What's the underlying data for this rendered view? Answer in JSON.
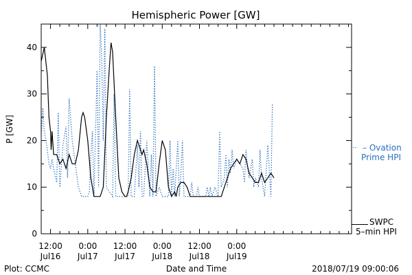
{
  "chart_data": {
    "type": "line",
    "title": "Hemispheric Power [GW]",
    "ylabel": "P [GW]",
    "xlabel": "Date and Time",
    "ylim": [
      0,
      45
    ],
    "xlim_hours": [
      -15,
      85
    ],
    "y_ticks": [
      0,
      10,
      20,
      30,
      40
    ],
    "x_ticks": [
      {
        "x": -12,
        "time": "12:00",
        "date": "Jul16"
      },
      {
        "x": 0,
        "time": "0:00",
        "date": "Jul17"
      },
      {
        "x": 12,
        "time": "12:00",
        "date": "Jul17"
      },
      {
        "x": 24,
        "time": "0:00",
        "date": "Jul18"
      },
      {
        "x": 36,
        "time": "12:00",
        "date": "Jul18"
      },
      {
        "x": 48,
        "time": "0:00",
        "date": "Jul19"
      }
    ],
    "grid": false,
    "series": [
      {
        "name": "SWPC 5-min HPI",
        "color": "#000000",
        "style": "solid",
        "points": [
          [
            -15,
            37
          ],
          [
            -14,
            40
          ],
          [
            -13,
            34
          ],
          [
            -12.5,
            25
          ],
          [
            -12,
            22
          ],
          [
            -11.8,
            18
          ],
          [
            -11.5,
            22
          ],
          [
            -11.2,
            19
          ],
          [
            -11,
            17
          ],
          [
            -10,
            17
          ],
          [
            -9,
            15
          ],
          [
            -8,
            16
          ],
          [
            -7,
            14
          ],
          [
            -6,
            17
          ],
          [
            -5,
            15
          ],
          [
            -4,
            15
          ],
          [
            -3,
            18
          ],
          [
            -2,
            25
          ],
          [
            -1.5,
            26
          ],
          [
            -1,
            25
          ],
          [
            0,
            20
          ],
          [
            1,
            12
          ],
          [
            2,
            8
          ],
          [
            3,
            8
          ],
          [
            4,
            8
          ],
          [
            5,
            10
          ],
          [
            6,
            25
          ],
          [
            7,
            36
          ],
          [
            7.5,
            41
          ],
          [
            8,
            39
          ],
          [
            9,
            25
          ],
          [
            10,
            12
          ],
          [
            11,
            9
          ],
          [
            12,
            8
          ],
          [
            12.5,
            8
          ],
          [
            13,
            9
          ],
          [
            14,
            12
          ],
          [
            15,
            17
          ],
          [
            16,
            20
          ],
          [
            17,
            18
          ],
          [
            17.5,
            17
          ],
          [
            18,
            18
          ],
          [
            19,
            15
          ],
          [
            20,
            10
          ],
          [
            21,
            9
          ],
          [
            22,
            9
          ],
          [
            23,
            15
          ],
          [
            24,
            20
          ],
          [
            25,
            18
          ],
          [
            26,
            10
          ],
          [
            27,
            8
          ],
          [
            28,
            9
          ],
          [
            28.5,
            8
          ],
          [
            29,
            10
          ],
          [
            30,
            11
          ],
          [
            31,
            11
          ],
          [
            32,
            10
          ],
          [
            33,
            8
          ],
          [
            35,
            8
          ],
          [
            37,
            8
          ],
          [
            39,
            8
          ],
          [
            41,
            8
          ],
          [
            43,
            8
          ],
          [
            44,
            10
          ],
          [
            45,
            12
          ],
          [
            46,
            14
          ],
          [
            47,
            15
          ],
          [
            48,
            16
          ],
          [
            49,
            15
          ],
          [
            50,
            17
          ],
          [
            51,
            16
          ],
          [
            52,
            13
          ],
          [
            53,
            12
          ],
          [
            54,
            11
          ],
          [
            55,
            11
          ],
          [
            56,
            13
          ],
          [
            57,
            11
          ],
          [
            58,
            12
          ],
          [
            59,
            13
          ],
          [
            60,
            12
          ]
        ]
      },
      {
        "name": "Ovation Prime HPI",
        "color": "#2a6ebd",
        "style": "dotted",
        "points": [
          [
            -15,
            20
          ],
          [
            -14.5,
            27
          ],
          [
            -14,
            22
          ],
          [
            -13,
            18
          ],
          [
            -12.5,
            15
          ],
          [
            -12,
            14
          ],
          [
            -11.5,
            16
          ],
          [
            -11,
            14
          ],
          [
            -10,
            11
          ],
          [
            -9.5,
            26
          ],
          [
            -9,
            10
          ],
          [
            -8,
            19
          ],
          [
            -7,
            23
          ],
          [
            -6.5,
            12
          ],
          [
            -6,
            29
          ],
          [
            -5,
            20
          ],
          [
            -4,
            15
          ],
          [
            -3,
            10
          ],
          [
            -2,
            8
          ],
          [
            -1,
            8
          ],
          [
            0,
            8
          ],
          [
            0.5,
            9
          ],
          [
            1,
            17
          ],
          [
            1.5,
            22
          ],
          [
            2,
            8
          ],
          [
            3,
            35
          ],
          [
            3.5,
            10
          ],
          [
            4,
            45
          ],
          [
            4.5,
            38
          ],
          [
            5,
            20
          ],
          [
            5.5,
            44
          ],
          [
            6,
            10
          ],
          [
            7,
            9
          ],
          [
            8,
            8
          ],
          [
            8.5,
            30
          ],
          [
            9,
            8
          ],
          [
            10,
            8
          ],
          [
            11,
            8
          ],
          [
            12,
            8
          ],
          [
            13,
            8
          ],
          [
            13.5,
            31
          ],
          [
            14,
            8
          ],
          [
            15,
            8
          ],
          [
            16,
            19
          ],
          [
            16.5,
            10
          ],
          [
            17,
            22
          ],
          [
            17.5,
            8
          ],
          [
            18,
            8
          ],
          [
            19,
            20
          ],
          [
            20,
            8
          ],
          [
            20.5,
            17
          ],
          [
            21,
            8
          ],
          [
            21.5,
            36
          ],
          [
            22,
            8
          ],
          [
            23,
            10
          ],
          [
            24,
            8
          ],
          [
            25,
            8
          ],
          [
            26,
            8
          ],
          [
            26.5,
            20
          ],
          [
            27,
            8
          ],
          [
            27.5,
            14
          ],
          [
            28,
            8
          ],
          [
            29,
            20
          ],
          [
            29.5,
            8
          ],
          [
            30,
            13
          ],
          [
            30.5,
            20
          ],
          [
            31,
            8
          ],
          [
            32,
            8
          ],
          [
            33,
            8
          ],
          [
            33.5,
            11
          ],
          [
            34,
            8
          ],
          [
            35,
            8
          ],
          [
            35.5,
            10
          ],
          [
            36,
            8
          ],
          [
            37,
            8
          ],
          [
            38,
            8
          ],
          [
            38.5,
            10
          ],
          [
            39,
            8
          ],
          [
            39.5,
            10
          ],
          [
            40,
            8
          ],
          [
            41,
            10
          ],
          [
            42,
            8
          ],
          [
            42.5,
            22
          ],
          [
            43,
            10
          ],
          [
            44,
            12
          ],
          [
            44.5,
            17
          ],
          [
            45,
            10
          ],
          [
            45.5,
            16
          ],
          [
            46,
            13
          ],
          [
            46.5,
            18
          ],
          [
            47,
            14
          ],
          [
            48,
            16
          ],
          [
            49,
            15
          ],
          [
            50,
            14
          ],
          [
            50.5,
            11
          ],
          [
            51,
            18
          ],
          [
            51.5,
            14
          ],
          [
            52,
            12
          ],
          [
            53,
            16
          ],
          [
            53.5,
            10
          ],
          [
            54,
            12
          ],
          [
            55,
            10
          ],
          [
            55.5,
            18
          ],
          [
            56,
            12
          ],
          [
            57,
            8
          ],
          [
            58,
            19
          ],
          [
            59,
            8
          ],
          [
            59.5,
            28
          ]
        ]
      }
    ],
    "legend": {
      "placement": "right",
      "ovation_label": [
        "– Ovation",
        "Prime HPI"
      ],
      "swpc_label": [
        "SWPC",
        "5–min HPI"
      ],
      "ovation_value": 18.5,
      "swpc_value": 2
    }
  },
  "footer": {
    "plot_credit": "Plot: CCMC",
    "timestamp": "2018/07/19 09:00:06"
  }
}
